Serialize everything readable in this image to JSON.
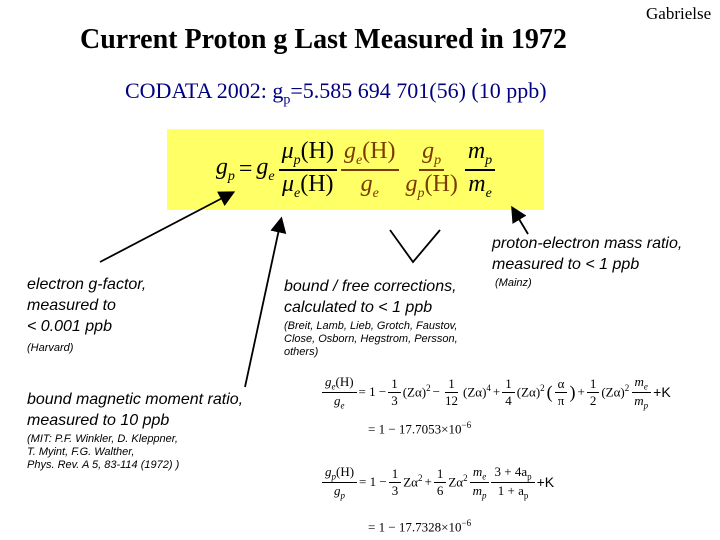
{
  "author": "Gabrielse",
  "title": "Current Proton g Last Measured in 1972",
  "codata": {
    "prefix": "CODATA 2002: g",
    "sub": "p",
    "value": "=5.585 694 701(56)  (10 ppb)"
  },
  "main_formula": {
    "lhs": "g",
    "lhs_sub": "p",
    "eq": "=",
    "ge": "g",
    "ge_sub": "e",
    "f1_num": "μ",
    "f1_num_sub": "p",
    "f1_num_arg": "(H)",
    "f1_den": "μ",
    "f1_den_sub": "e",
    "f1_den_arg": "(H)",
    "f2_num": "g",
    "f2_num_sub": "e",
    "f2_num_arg": "(H)",
    "f2_den": "g",
    "f2_den_sub": "e",
    "f3_num": "g",
    "f3_num_sub": "p",
    "f3_den": "g",
    "f3_den_sub": "p",
    "f3_den_arg": "(H)",
    "f4_num": "m",
    "f4_num_sub": "p",
    "f4_den": "m",
    "f4_den_sub": "e"
  },
  "annotations": {
    "electron_g": {
      "lines": [
        "electron g-factor,",
        "measured to",
        "< 0.001 ppb"
      ],
      "source": "(Harvard)"
    },
    "bound_free": {
      "lines": [
        "bound / free corrections,",
        "calculated to < 1 ppb"
      ],
      "source_lines": [
        "(Breit, Lamb, Lieb, Grotch, Faustov,",
        "Close, Osborn, Hegstrom, Persson,",
        "others)"
      ]
    },
    "mass_ratio": {
      "lines": [
        "proton-electron mass ratio,",
        "measured to < 1 ppb"
      ],
      "source": "(Mainz)"
    },
    "moment_ratio": {
      "lines": [
        "bound magnetic moment ratio,",
        "measured to 10 ppb"
      ],
      "source_lines": [
        "(MIT:  P.F. Winkler, D. Kleppner,",
        "T. Myint, F.G. Walther,",
        "Phys. Rev. A 5, 83-114 (1972)  )"
      ]
    }
  },
  "eq_electron": {
    "lhs_num": "g",
    "lhs_num_sub": "e",
    "lhs_num_arg": "(H)",
    "lhs_den": "g",
    "lhs_den_sub": "e",
    "eq": "= 1 −",
    "t1_num": "1",
    "t1_den": "3",
    "za1": "(Zα)",
    "sup2": "2",
    "minus1": "−",
    "t2_num": "1",
    "t2_den": "12",
    "za2": "(Zα)",
    "sup4": "4",
    "plus1": "+",
    "t3_num": "1",
    "t3_den": "4",
    "za3": "(Zα)",
    "sup2b": "2",
    "lp": "(",
    "a_num": "α",
    "a_den": "π",
    "rp": ")",
    "plus2": "+",
    "t4_num": "1",
    "t4_den": "2",
    "za4": "(Zα)",
    "sup2c": "2",
    "m_num": "m",
    "m_num_sub": "e",
    "m_den": "m",
    "m_den_sub": "p",
    "tail": "+K",
    "result": "= 1 − 17.7053×10",
    "result_exp": "−6"
  },
  "eq_proton": {
    "lhs_num": "g",
    "lhs_num_sub": "p",
    "lhs_num_arg": "(H)",
    "lhs_den": "g",
    "lhs_den_sub": "p",
    "eq": "= 1 −",
    "t1_num": "1",
    "t1_den": "3",
    "za1": "Zα",
    "sup2": "2",
    "plus1": "+",
    "t2_num": "1",
    "t2_den": "6",
    "za2": "Zα",
    "sup2b": "2",
    "m_num": "m",
    "m_num_sub": "e",
    "m_den": "m",
    "m_den_sub": "p",
    "c_num": "3 + 4a",
    "c_num_sub": "p",
    "c_den": "1 + a",
    "c_den_sub": "p",
    "tail": "+K",
    "result": "= 1 − 17.7328×10",
    "result_exp": "−6"
  },
  "colors": {
    "formula_box": "#ffff66",
    "codata_text": "#000080",
    "text": "#000000"
  }
}
